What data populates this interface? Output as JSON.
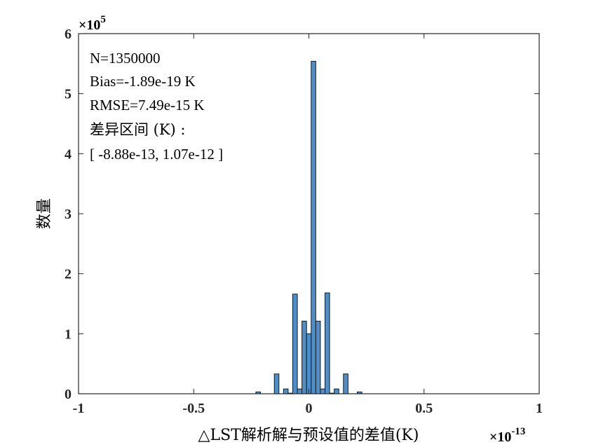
{
  "chart_data": {
    "type": "bar",
    "subtype": "histogram",
    "xlabel": "△LST解析解与预设值的差值(K)",
    "ylabel": "数量",
    "x_multiplier": "×10",
    "x_multiplier_exp": "-13",
    "y_multiplier": "×10",
    "y_multiplier_exp": "5",
    "xlim": [
      -1,
      1
    ],
    "ylim": [
      0,
      6
    ],
    "x_ticks": [
      "-1",
      "-0.5",
      "0",
      "0.5",
      "1"
    ],
    "y_ticks": [
      "0",
      "1",
      "2",
      "3",
      "4",
      "5",
      "6"
    ],
    "x_tick_values": [
      -1,
      -0.5,
      0,
      0.5,
      1
    ],
    "y_tick_values": [
      0,
      1,
      2,
      3,
      4,
      5,
      6
    ],
    "grid": false,
    "bar_color": "#4f8fc9",
    "bin_width": 0.02,
    "bins": [
      {
        "x": -0.22,
        "value": 0.03
      },
      {
        "x": -0.14,
        "value": 0.33
      },
      {
        "x": -0.1,
        "value": 0.08
      },
      {
        "x": -0.08,
        "value": 0.01
      },
      {
        "x": -0.06,
        "value": 1.66
      },
      {
        "x": -0.04,
        "value": 0.08
      },
      {
        "x": -0.02,
        "value": 1.21
      },
      {
        "x": 0.0,
        "value": 1.0
      },
      {
        "x": 0.02,
        "value": 5.54
      },
      {
        "x": 0.04,
        "value": 1.21
      },
      {
        "x": 0.06,
        "value": 0.08
      },
      {
        "x": 0.08,
        "value": 1.68
      },
      {
        "x": 0.1,
        "value": 0.01
      },
      {
        "x": 0.12,
        "value": 0.08
      },
      {
        "x": 0.16,
        "value": 0.33
      },
      {
        "x": 0.22,
        "value": 0.03
      }
    ],
    "annotations": {
      "n": "N=1350000",
      "bias": "Bias=-1.89e-19 K",
      "rmse": "RMSE=7.49e-15 K",
      "range_label": "差异区间 (K) :",
      "range_value": "[ -8.88e-13, 1.07e-12 ]"
    }
  }
}
